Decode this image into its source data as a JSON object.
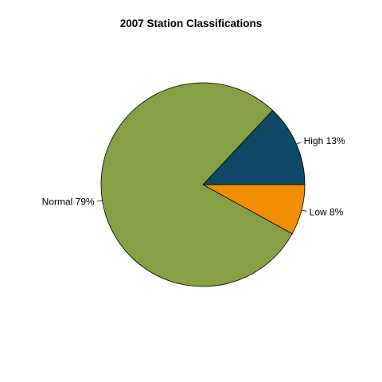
{
  "chart_data": {
    "type": "pie",
    "title": "2007 Station Classifications",
    "slices": [
      {
        "label": "High 13%",
        "value": 13,
        "color": "#0e4a68"
      },
      {
        "label": "Normal 79%",
        "value": 79,
        "color": "#87a045"
      },
      {
        "label": "Low 8%",
        "value": 8,
        "color": "#f18f01"
      }
    ],
    "direction": "counterclockwise",
    "start_angle_deg": 0,
    "legend": "none"
  }
}
